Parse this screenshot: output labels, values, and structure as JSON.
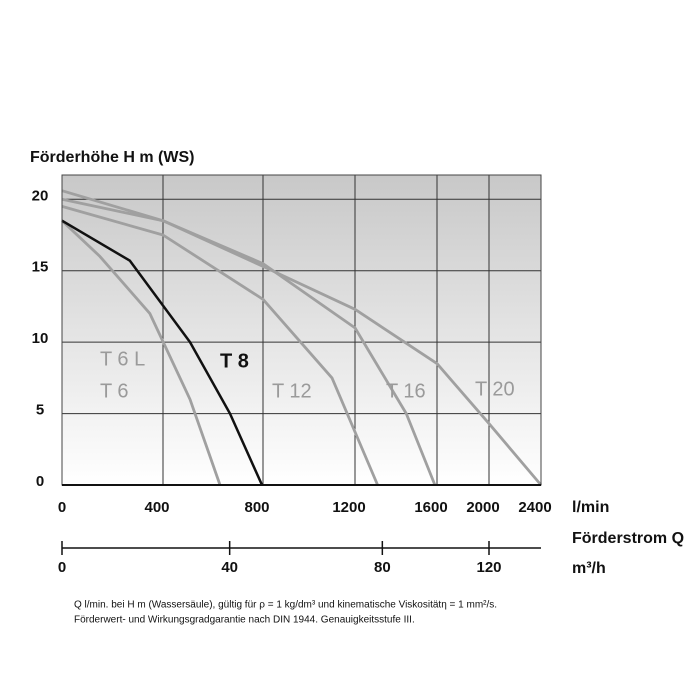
{
  "chart_data": {
    "type": "line",
    "y_label": "Förderhöhe H m (WS)",
    "x_label": "l/min",
    "x2_label": "Förderstrom Q",
    "x2_unit": "m³/h",
    "xlim": [
      0,
      2400
    ],
    "xticks": [
      0,
      400,
      800,
      1200,
      1600,
      2000,
      2400
    ],
    "x2ticks": [
      0,
      40,
      80,
      120
    ],
    "ylim": [
      0,
      21.7
    ],
    "yticks": [
      0,
      5,
      10,
      15,
      20
    ],
    "grid": true,
    "series": [
      {
        "name": "T 6",
        "color": "#a0a0a0",
        "x": [
          0,
          150,
          348,
          508,
          588,
          628
        ],
        "values": [
          18.5,
          16,
          12,
          6,
          2,
          0
        ]
      },
      {
        "name": "T 8",
        "color": "#111111",
        "x": [
          0,
          269,
          508,
          668,
          796
        ],
        "values": [
          18.5,
          15.7,
          10,
          5,
          0
        ]
      },
      {
        "name": "T 12",
        "color": "#a0a0a0",
        "x": [
          0,
          400,
          800,
          1100,
          1310
        ],
        "values": [
          19.5,
          17.5,
          13,
          7.5,
          0
        ]
      },
      {
        "name": "T 16",
        "color": "#a0a0a0",
        "x": [
          0,
          400,
          800,
          1200,
          1450,
          1590
        ],
        "values": [
          20,
          18.5,
          15.5,
          11,
          5,
          0
        ]
      },
      {
        "name": "T 20",
        "color": "#a0a0a0",
        "x": [
          0,
          400,
          800,
          1200,
          1600,
          2000,
          2400
        ],
        "values": [
          20.6,
          18.5,
          15.3,
          12.3,
          8.5,
          4.3,
          0
        ]
      }
    ],
    "annotations": [
      "T 6 L"
    ]
  },
  "notes": [
    "Q l/min. bei H m (Wassersäule), gültig für ρ = 1 kg/dm³ und kinematische Viskositätη = 1 mm²/s.",
    "Förderwert- und Wirkungsgradgarantie nach DIN 1944. Genauigkeitsstufe III."
  ]
}
